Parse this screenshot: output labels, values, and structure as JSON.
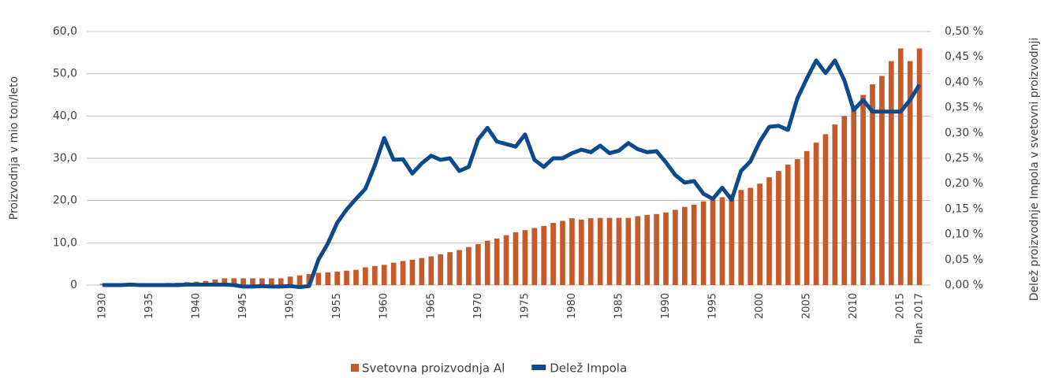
{
  "chart_data": {
    "type": "bar_line",
    "y_label": "Proizvodnja v mio ton/leto",
    "y2_label": "Delež proizvodnje Impola v svetovni  proizvodnji",
    "categories": [
      "1930",
      null,
      null,
      null,
      null,
      "1935",
      null,
      null,
      null,
      null,
      "1940",
      null,
      null,
      null,
      null,
      "1945",
      null,
      null,
      null,
      null,
      "1950",
      null,
      null,
      null,
      null,
      "1955",
      null,
      null,
      null,
      null,
      "1960",
      null,
      null,
      null,
      null,
      "1965",
      null,
      null,
      null,
      null,
      "1970",
      null,
      null,
      null,
      null,
      "1975",
      null,
      null,
      null,
      null,
      "1980",
      null,
      null,
      null,
      null,
      "1985",
      null,
      null,
      null,
      null,
      "1990",
      null,
      null,
      null,
      null,
      "1995",
      null,
      null,
      null,
      null,
      "2000",
      null,
      null,
      null,
      null,
      "2005",
      null,
      null,
      null,
      null,
      "2010",
      null,
      null,
      null,
      null,
      "2015",
      null,
      "Plan 2017"
    ],
    "series": [
      {
        "name": "Svetovna proizvodnja Al",
        "type": "bar",
        "color": "#c65a2b",
        "values": [
          0.3,
          0.25,
          0.2,
          0.15,
          0.2,
          0.25,
          0.35,
          0.5,
          0.55,
          0.7,
          0.8,
          1.0,
          1.3,
          1.6,
          1.6,
          1.6,
          1.6,
          1.6,
          1.6,
          1.6,
          2.0,
          2.3,
          2.6,
          2.9,
          3.0,
          3.2,
          3.4,
          3.6,
          4.2,
          4.5,
          4.8,
          5.3,
          5.7,
          6.0,
          6.4,
          6.8,
          7.3,
          7.8,
          8.3,
          9.0,
          9.7,
          10.5,
          11.0,
          11.8,
          12.5,
          13.0,
          13.5,
          14.0,
          14.7,
          15.2,
          15.8,
          15.5,
          15.8,
          15.9,
          15.9,
          15.9,
          15.9,
          16.3,
          16.6,
          16.8,
          17.2,
          17.8,
          18.5,
          19.0,
          19.8,
          20.5,
          20.8,
          21.5,
          22.5,
          23.0,
          24.0,
          25.5,
          27.0,
          28.5,
          29.8,
          31.7,
          33.7,
          35.7,
          38.0,
          40.0,
          42.5,
          45.0,
          47.5,
          49.5,
          53.0,
          56.0,
          53.0,
          56.0
        ]
      },
      {
        "name": "Delež Impola",
        "type": "line",
        "axis": "y2",
        "color": "#0d4a8c",
        "values": [
          0,
          0,
          0,
          0.001,
          0,
          0,
          0,
          0,
          0,
          0.001,
          0.001,
          0.001,
          0.001,
          0.001,
          0,
          -0.003,
          -0.003,
          -0.002,
          -0.003,
          -0.003,
          -0.002,
          -0.004,
          -0.002,
          0.05,
          0.082,
          0.123,
          0.149,
          0.17,
          0.19,
          0.236,
          0.29,
          0.247,
          0.248,
          0.22,
          0.24,
          0.255,
          0.247,
          0.25,
          0.225,
          0.233,
          0.287,
          0.31,
          0.283,
          0.278,
          0.273,
          0.297,
          0.247,
          0.233,
          0.25,
          0.25,
          0.26,
          0.267,
          0.262,
          0.275,
          0.26,
          0.265,
          0.28,
          0.268,
          0.262,
          0.264,
          0.242,
          0.217,
          0.202,
          0.205,
          0.18,
          0.17,
          0.192,
          0.168,
          0.225,
          0.244,
          0.283,
          0.312,
          0.314,
          0.306,
          0.368,
          0.407,
          0.443,
          0.418,
          0.443,
          0.404,
          0.345,
          0.365,
          0.342,
          0.342,
          0.342,
          0.342,
          0.365,
          0.395
        ]
      }
    ],
    "ylim": [
      0,
      60
    ],
    "yticks": [
      0,
      {
        "value": 10,
        "label": "10,0"
      },
      {
        "value": 20,
        "label": "20,0"
      },
      {
        "value": 30,
        "label": "30,0"
      },
      {
        "value": 40,
        "label": "40,0"
      },
      {
        "value": 50,
        "label": "50,0"
      },
      {
        "value": 60,
        "label": "60,0"
      }
    ],
    "y2lim": [
      0,
      0.5
    ],
    "y2ticks": [
      {
        "value": 0,
        "label": "0,00 %"
      },
      {
        "value": 0.05,
        "label": "0,05 %"
      },
      {
        "value": 0.1,
        "label": "0,10 %"
      },
      {
        "value": 0.15,
        "label": "0,15 %"
      },
      {
        "value": 0.2,
        "label": "0,20 %"
      },
      {
        "value": 0.25,
        "label": "0,25 %"
      },
      {
        "value": 0.3,
        "label": "0,30 %"
      },
      {
        "value": 0.35,
        "label": "0,35 %"
      },
      {
        "value": 0.4,
        "label": "0,40 %"
      },
      {
        "value": 0.45,
        "label": "0,45 %"
      },
      {
        "value": 0.5,
        "label": "0,50 %"
      }
    ],
    "grid": true,
    "legend": "bottom"
  }
}
